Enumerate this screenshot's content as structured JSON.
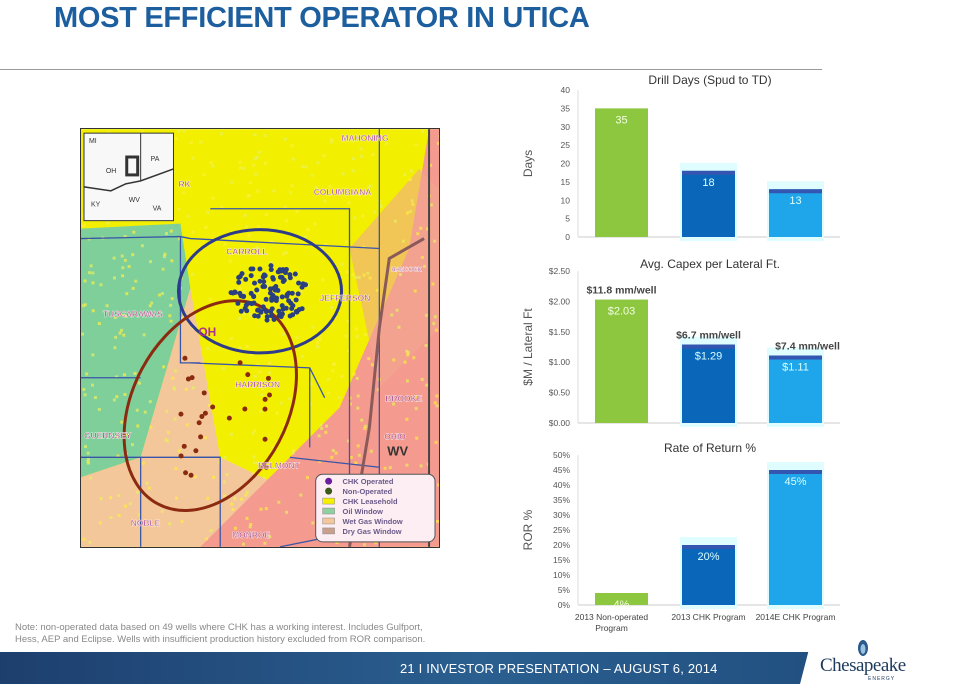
{
  "slide": {
    "title": "MOST EFFICIENT OPERATOR IN UTICA",
    "note_line1": "Note: non-operated data based on 49 wells where CHK has a working interest.  Includes Gulfport,",
    "note_line2": "Hess, AEP and Eclipse. Wells with insufficient production history excluded from ROR comparison.",
    "footer": "21   I   INVESTOR PRESENTATION – AUGUST 6, 2014",
    "logo": {
      "name": "Chesapeake",
      "sub": "ENERGY"
    }
  },
  "map": {
    "inset_labels": [
      "MI",
      "PA",
      "OH",
      "WV",
      "KY",
      "VA"
    ],
    "counties": [
      "MAHONING",
      "COLUMBIANA",
      "CARROLL",
      "HANCOCK",
      "JEFFERSON",
      "TUSCARAWAS",
      "HARRISON",
      "BROOKE",
      "GUERNSEY",
      "OHIO",
      "BELMONT",
      "NOBLE",
      "MONROE",
      "RK"
    ],
    "state_labels": [
      "OH",
      "WV"
    ],
    "legend": [
      {
        "label": "CHK Operated",
        "color": "#6a1fa0"
      },
      {
        "label": "Non-Operated",
        "color": "#3b5a1a"
      },
      {
        "label": "CHK Leasehold",
        "color": "#f5f000"
      },
      {
        "label": "Oil Window",
        "color": "#8fd0a0"
      },
      {
        "label": "Wet Gas Window",
        "color": "#f4c79a"
      },
      {
        "label": "Dry Gas Window",
        "color": "#c9a08c"
      }
    ]
  },
  "chart_data": [
    {
      "type": "bar",
      "title": "Drill Days (Spud to TD)",
      "ylabel": "Days",
      "ylim": [
        0,
        40
      ],
      "yticks": [
        "0",
        "5",
        "10",
        "15",
        "20",
        "25",
        "30",
        "35",
        "40"
      ],
      "categories": [
        "2013 Non-operated Program",
        "2013 CHK Program",
        "2014E CHK Program"
      ],
      "values": [
        35,
        18,
        13
      ],
      "data_labels": [
        "35",
        "18",
        "13"
      ],
      "annotations": []
    },
    {
      "type": "bar",
      "title": "Avg. Capex per Lateral Ft.",
      "ylabel": "$M / Lateral Ft",
      "ylim": [
        0,
        2.5
      ],
      "yticks": [
        "$0.00",
        "$0.50",
        "$1.00",
        "$1.50",
        "$2.00",
        "$2.50"
      ],
      "categories": [
        "2013 Non-operated Program",
        "2013 CHK Program",
        "2014E CHK Program"
      ],
      "values": [
        2.03,
        1.29,
        1.11
      ],
      "data_labels": [
        "$2.03",
        "$1.29",
        "$1.11"
      ],
      "annotations": [
        "$11.8 mm/well",
        "$6.7 mm/well",
        "$7.4 mm/well"
      ]
    },
    {
      "type": "bar",
      "title": "Rate of Return %",
      "ylabel": "ROR %",
      "ylim": [
        0,
        50
      ],
      "yticks": [
        "0%",
        "5%",
        "10%",
        "15%",
        "20%",
        "25%",
        "30%",
        "35%",
        "40%",
        "45%",
        "50%"
      ],
      "categories": [
        "2013 Non-operated Program",
        "2013 CHK Program",
        "2014E CHK Program"
      ],
      "category_lines": [
        [
          "2013 Non-operated",
          "Program"
        ],
        [
          "2013 CHK Program"
        ],
        [
          "2014E CHK Program"
        ]
      ],
      "values": [
        4,
        20,
        45
      ],
      "data_labels": [
        "4%",
        "20%",
        "45%"
      ],
      "annotations": []
    }
  ],
  "colors": {
    "green": "#8dc63f",
    "dark_blue": "#0a66b8",
    "light_blue": "#1ea5ea",
    "title": "#1d5f9e"
  }
}
